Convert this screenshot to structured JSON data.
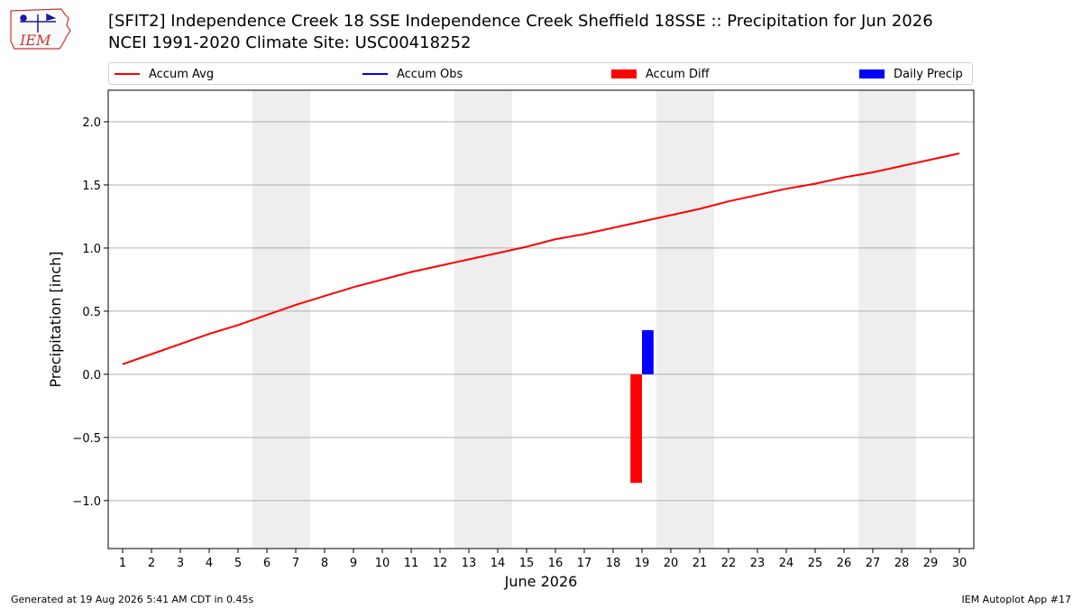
{
  "logo": {
    "text": "IEM",
    "icon": "iem-weather-station-logo"
  },
  "colors": {
    "avg": "#ff0000",
    "obs": "#0000ff",
    "diff": "#ff0000",
    "daily": "#0000ff",
    "weekend": "#eeeeee",
    "grid": "#b0b0b0"
  },
  "chart_data": {
    "type": "line",
    "title": "[SFIT2] Independence Creek 18 SSE Independence Creek Sheffield 18SSE :: Precipitation for Jun 2026",
    "subtitle": "NCEI 1991-2020 Climate Site: USC00418252",
    "xlabel": "June 2026",
    "ylabel": "Precipitation [inch]",
    "xlim": [
      0.5,
      30.5
    ],
    "ylim": [
      -1.38,
      2.25
    ],
    "grid": true,
    "legend_position": "top",
    "legend": [
      {
        "label": "Accum Avg",
        "kind": "line",
        "color": "#ff0000"
      },
      {
        "label": "Accum Obs",
        "kind": "line",
        "color": "#0000ff"
      },
      {
        "label": "Accum Diff",
        "kind": "bar",
        "color": "#ff0000"
      },
      {
        "label": "Daily Precip",
        "kind": "bar",
        "color": "#0000ff"
      }
    ],
    "x_ticks": [
      1,
      2,
      3,
      4,
      5,
      6,
      7,
      8,
      9,
      10,
      11,
      12,
      13,
      14,
      15,
      16,
      17,
      18,
      19,
      20,
      21,
      22,
      23,
      24,
      25,
      26,
      27,
      28,
      29,
      30
    ],
    "y_ticks": [
      {
        "value": -1.0,
        "label": "−1.0"
      },
      {
        "value": -0.5,
        "label": "−0.5"
      },
      {
        "value": 0.0,
        "label": "0.0"
      },
      {
        "value": 0.5,
        "label": "0.5"
      },
      {
        "value": 1.0,
        "label": "1.0"
      },
      {
        "value": 1.5,
        "label": "1.5"
      },
      {
        "value": 2.0,
        "label": "2.0"
      }
    ],
    "weekend_spans": [
      [
        5.5,
        7.5
      ],
      [
        12.5,
        14.5
      ],
      [
        19.5,
        21.5
      ],
      [
        26.5,
        28.5
      ]
    ],
    "series": [
      {
        "name": "Accum Avg",
        "type": "line",
        "x": [
          1,
          2,
          3,
          4,
          5,
          6,
          7,
          8,
          9,
          10,
          11,
          12,
          13,
          14,
          15,
          16,
          17,
          18,
          19,
          20,
          21,
          22,
          23,
          24,
          25,
          26,
          27,
          28,
          29,
          30
        ],
        "values": [
          0.08,
          0.16,
          0.24,
          0.32,
          0.39,
          0.47,
          0.55,
          0.62,
          0.69,
          0.75,
          0.81,
          0.86,
          0.91,
          0.96,
          1.01,
          1.07,
          1.11,
          1.16,
          1.21,
          1.26,
          1.31,
          1.37,
          1.42,
          1.47,
          1.51,
          1.56,
          1.6,
          1.65,
          1.7,
          1.75
        ]
      },
      {
        "name": "Accum Diff",
        "type": "bar",
        "x": [
          18.8
        ],
        "values": [
          -0.86
        ]
      },
      {
        "name": "Daily Precip",
        "type": "bar",
        "x": [
          19.2
        ],
        "values": [
          0.35
        ]
      }
    ]
  },
  "footer": {
    "generated": "Generated at 19 Aug 2026 5:41 AM CDT in 0.45s",
    "app": "IEM Autoplot App #17"
  }
}
